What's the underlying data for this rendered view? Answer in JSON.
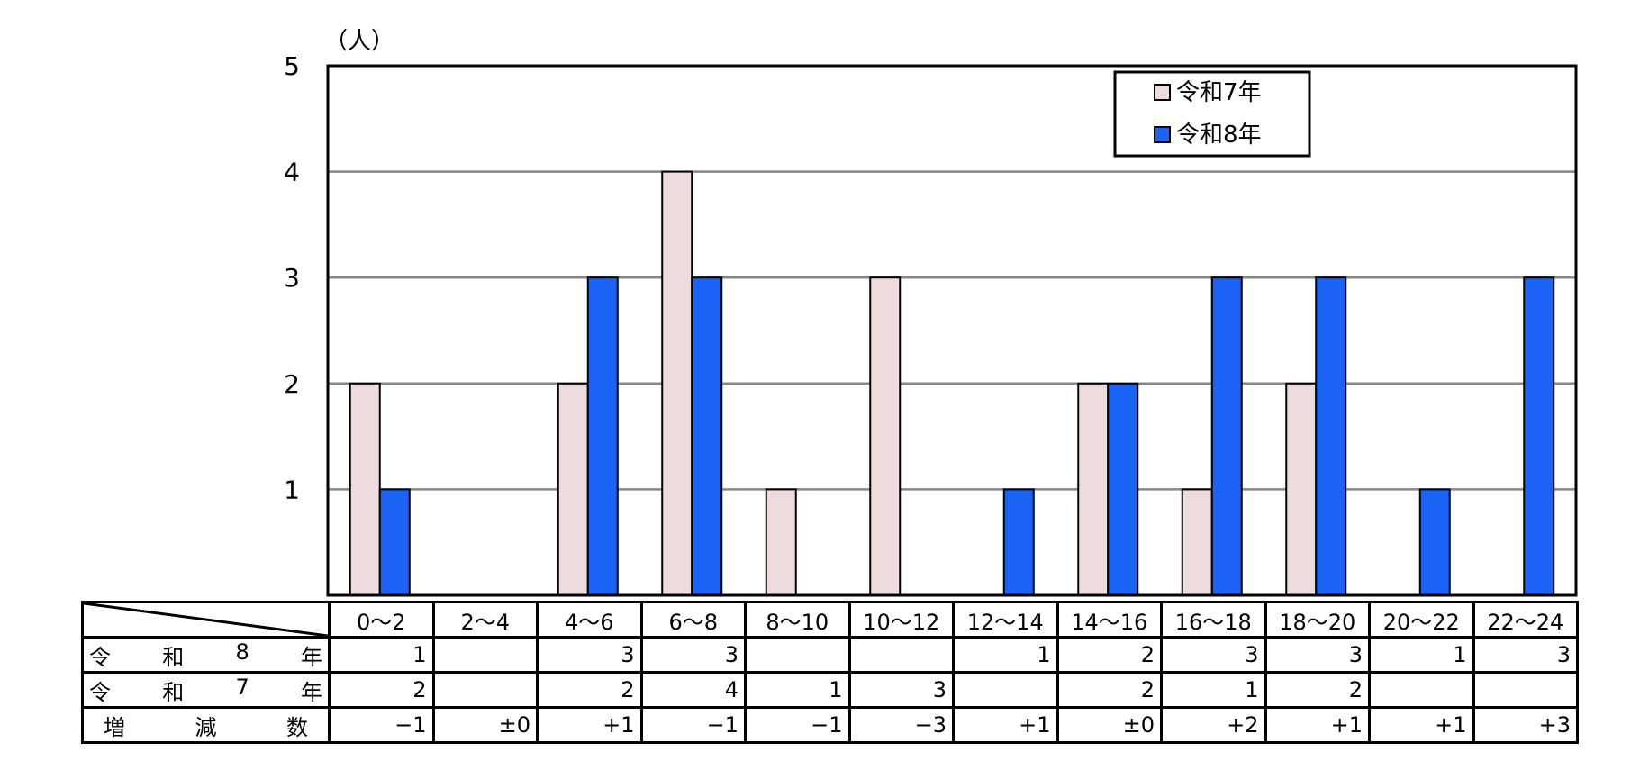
{
  "chart_data": {
    "type": "bar",
    "unit_label": "（人）",
    "categories": [
      "0～2",
      "2～4",
      "4～6",
      "6～8",
      "8～10",
      "10～12",
      "12～14",
      "14～16",
      "16～18",
      "18～20",
      "20～22",
      "22～24"
    ],
    "series": [
      {
        "name": "令和7年",
        "color": "#eedcdc",
        "values": [
          2,
          0,
          2,
          4,
          1,
          3,
          0,
          2,
          1,
          2,
          0,
          0
        ]
      },
      {
        "name": "令和8年",
        "color": "#1a63f5",
        "values": [
          1,
          0,
          3,
          3,
          0,
          0,
          1,
          2,
          3,
          3,
          1,
          3
        ]
      }
    ],
    "ylim": [
      0,
      5
    ],
    "yticks": [
      "1",
      "2",
      "3",
      "4",
      "5"
    ],
    "grid": true,
    "legend_position": "top-right"
  },
  "table": {
    "rows": [
      {
        "label_chars": [
          "令",
          "和",
          "8",
          "年"
        ],
        "cells": [
          "1",
          "",
          "3",
          "3",
          "",
          "",
          "1",
          "2",
          "3",
          "3",
          "1",
          "3"
        ]
      },
      {
        "label_chars": [
          "令",
          "和",
          "7",
          "年"
        ],
        "cells": [
          "2",
          "",
          "2",
          "4",
          "1",
          "3",
          "",
          "2",
          "1",
          "2",
          "",
          ""
        ]
      },
      {
        "label_chars": [
          "増",
          "減",
          "数"
        ],
        "cells": [
          "−1",
          "±0",
          "+1",
          "−1",
          "−1",
          "−3",
          "+1",
          "±0",
          "+2",
          "+1",
          "+1",
          "+3"
        ]
      }
    ]
  }
}
